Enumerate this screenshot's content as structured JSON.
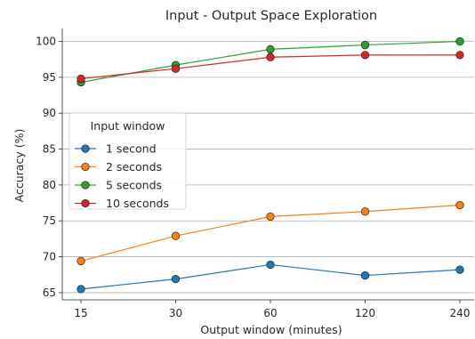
{
  "chart_data": {
    "type": "line",
    "title": "Input - Output Space Exploration",
    "xlabel": "Output window (minutes)",
    "ylabel": "Accuracy (%)",
    "categories": [
      "15",
      "30",
      "60",
      "120",
      "240"
    ],
    "ylim": [
      64.0,
      101.8
    ],
    "yticks": [
      65,
      70,
      75,
      80,
      85,
      90,
      95,
      100
    ],
    "grid": "horizontal",
    "legend": {
      "title": "Input window",
      "placement": "center-left"
    },
    "series": [
      {
        "name": "1 second",
        "color": "#1f77b4",
        "values": [
          65.5,
          66.9,
          68.9,
          67.4,
          68.2
        ]
      },
      {
        "name": "2 seconds",
        "color": "#ff7f0e",
        "values": [
          69.4,
          72.9,
          75.6,
          76.3,
          77.2
        ]
      },
      {
        "name": "5 seconds",
        "color": "#2ca02c",
        "values": [
          94.3,
          96.7,
          98.9,
          99.5,
          100.0
        ]
      },
      {
        "name": "10 seconds",
        "color": "#d62728",
        "values": [
          94.8,
          96.2,
          97.8,
          98.1,
          98.1
        ]
      }
    ]
  }
}
